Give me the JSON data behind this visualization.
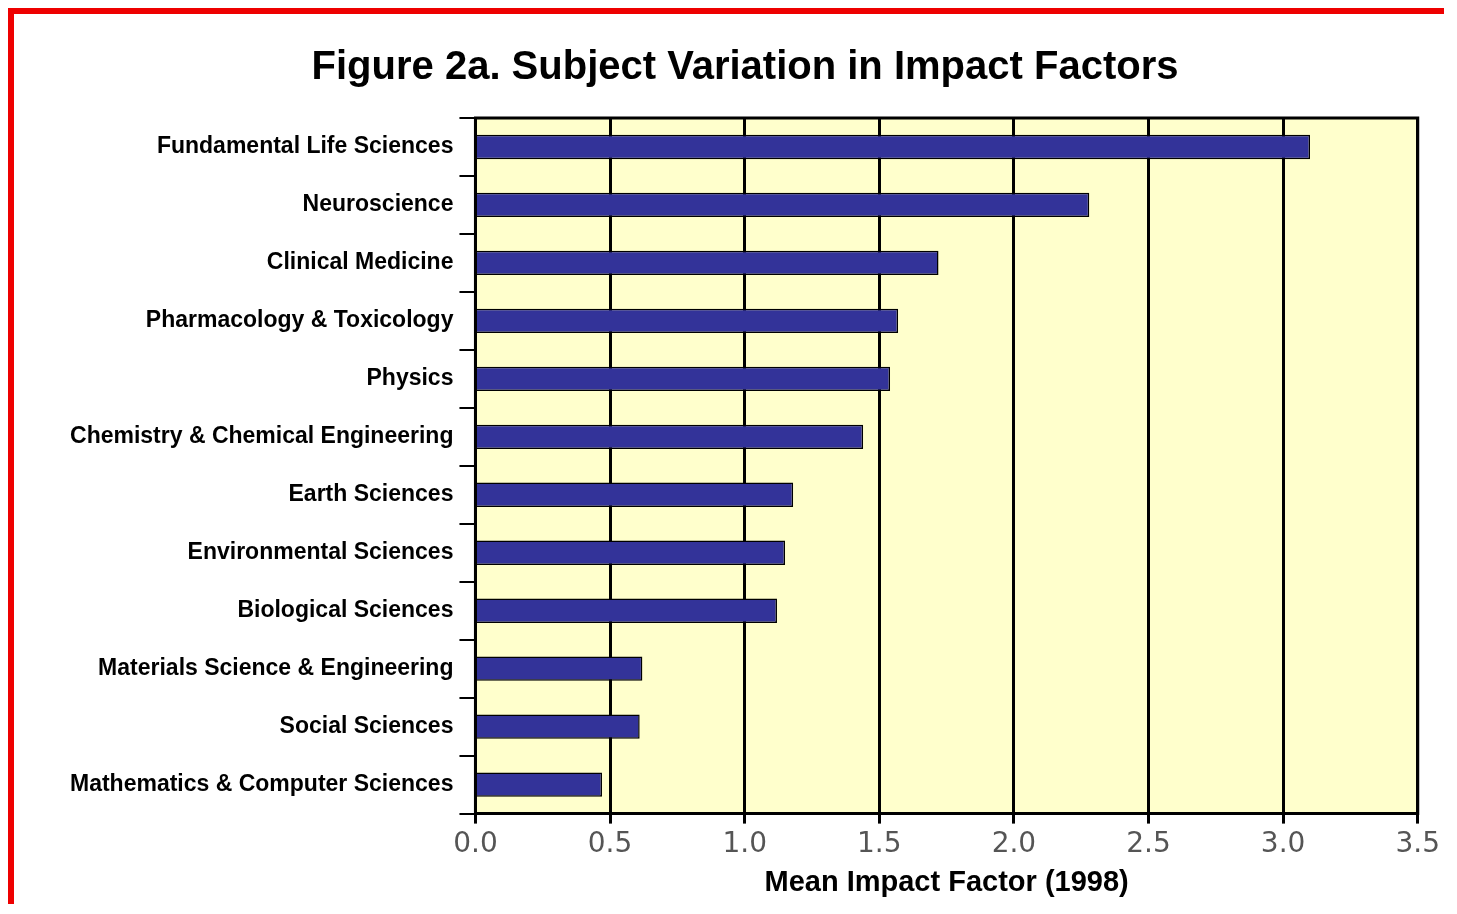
{
  "chart_data": {
    "type": "bar",
    "orientation": "horizontal",
    "title": "Figure 2a. Subject Variation in Impact Factors",
    "xlabel": "Mean Impact Factor (1998)",
    "categories": [
      "Fundamental Life Sciences",
      "Neuroscience",
      "Clinical Medicine",
      "Pharmacology & Toxicology",
      "Physics",
      "Chemistry & Chemical Engineering",
      "Earth Sciences",
      "Environmental Sciences",
      "Biological Sciences",
      "Materials Science & Engineering",
      "Social Sciences",
      "Mathematics & Computer Sciences"
    ],
    "values": [
      3.1,
      2.28,
      1.72,
      1.57,
      1.54,
      1.44,
      1.18,
      1.15,
      1.12,
      0.62,
      0.61,
      0.47
    ],
    "color": "#333399",
    "xlim": [
      0,
      3.5
    ],
    "xticks": [
      {
        "value": 0,
        "label": "0.0"
      },
      {
        "value": 0.5,
        "label": "0.5"
      },
      {
        "value": 1,
        "label": "1.0"
      },
      {
        "value": 1.5,
        "label": "1.5"
      },
      {
        "value": 2,
        "label": "2.0"
      },
      {
        "value": 2.5,
        "label": "2.5"
      },
      {
        "value": 3,
        "label": "3.0"
      },
      {
        "value": 3.5,
        "label": "3.5"
      }
    ],
    "grid": "x",
    "legend": false
  }
}
